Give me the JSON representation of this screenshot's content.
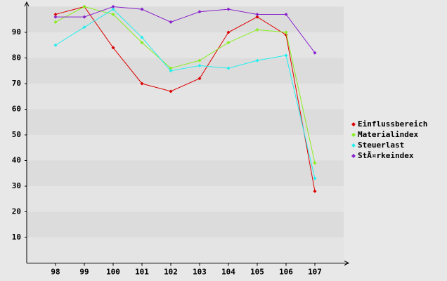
{
  "chart_data": {
    "type": "line",
    "x": [
      98,
      99,
      100,
      101,
      102,
      103,
      104,
      105,
      106,
      107
    ],
    "xlim": [
      97,
      108
    ],
    "xticks": [
      98,
      99,
      100,
      101,
      102,
      103,
      104,
      105,
      106,
      107
    ],
    "ylim": [
      0,
      100
    ],
    "yticks": [
      10,
      20,
      30,
      40,
      50,
      60,
      70,
      80,
      90
    ],
    "series": [
      {
        "name": "Einflussbereich",
        "color": "#dd0000",
        "values": [
          97,
          100,
          84,
          70,
          67,
          72,
          90,
          96,
          89,
          28
        ]
      },
      {
        "name": "Materialindex",
        "color": "#88ee22",
        "values": [
          94,
          100,
          97,
          86,
          76,
          79,
          86,
          91,
          90,
          39
        ]
      },
      {
        "name": "Steuerlast",
        "color": "#22eeee",
        "values": [
          85,
          92,
          99,
          88,
          75,
          77,
          76,
          79,
          81,
          33
        ]
      },
      {
        "name": "StÃ¤rkeindex",
        "color": "#8822cc",
        "values": [
          96,
          96,
          100,
          99,
          94,
          98,
          99,
          97,
          97,
          82
        ]
      }
    ]
  }
}
